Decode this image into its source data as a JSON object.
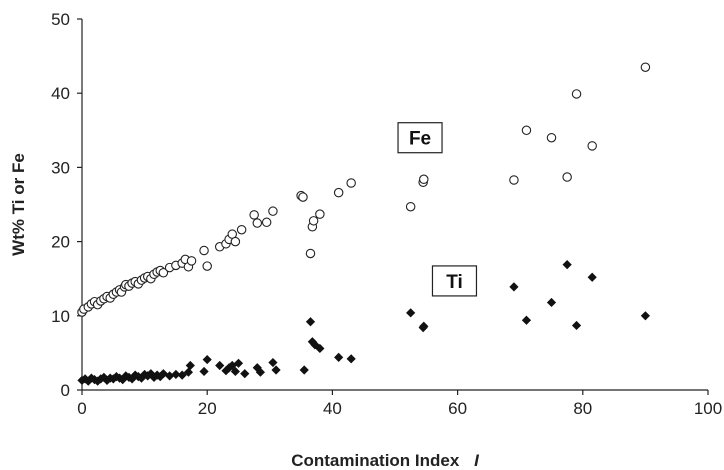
{
  "chart_data": {
    "type": "scatter",
    "title": "",
    "xlabel": "Contamination Index",
    "xlabel_symbol": "I",
    "ylabel": "Wt% Ti or Fe",
    "xlim": [
      0,
      100
    ],
    "ylim": [
      0,
      50
    ],
    "xticks": [
      "0",
      "20",
      "40",
      "60",
      "80",
      "100"
    ],
    "yticks": [
      "0",
      "10",
      "20",
      "30",
      "40",
      "50"
    ],
    "grid": false,
    "legend": "none",
    "series": [
      {
        "name": "Fe",
        "label_position": [
          54,
          34
        ],
        "marker": "open-circle",
        "color": "#222222",
        "points": [
          [
            0,
            10.5
          ],
          [
            0.3,
            10.9
          ],
          [
            1,
            11.2
          ],
          [
            1.5,
            11.6
          ],
          [
            2,
            11.9
          ],
          [
            2.5,
            11.5
          ],
          [
            3,
            12.0
          ],
          [
            3.5,
            12.3
          ],
          [
            4,
            12.6
          ],
          [
            4.5,
            12.4
          ],
          [
            5,
            12.9
          ],
          [
            5.5,
            13.2
          ],
          [
            6,
            13.5
          ],
          [
            6.3,
            13.2
          ],
          [
            6.8,
            13.9
          ],
          [
            7,
            14.2
          ],
          [
            7.5,
            14.0
          ],
          [
            8,
            14.4
          ],
          [
            8.5,
            14.6
          ],
          [
            9,
            14.3
          ],
          [
            9.5,
            14.8
          ],
          [
            10,
            15.1
          ],
          [
            10.5,
            15.3
          ],
          [
            11,
            15.0
          ],
          [
            11.5,
            15.6
          ],
          [
            12,
            15.9
          ],
          [
            12.5,
            16.1
          ],
          [
            13,
            15.8
          ],
          [
            14,
            16.5
          ],
          [
            15,
            16.8
          ],
          [
            16,
            17.1
          ],
          [
            16.5,
            17.6
          ],
          [
            17,
            16.6
          ],
          [
            17.5,
            17.4
          ],
          [
            19.5,
            18.8
          ],
          [
            20,
            16.7
          ],
          [
            22,
            19.3
          ],
          [
            23,
            19.7
          ],
          [
            23.5,
            20.3
          ],
          [
            24,
            21.0
          ],
          [
            24.5,
            20.0
          ],
          [
            25.5,
            21.6
          ],
          [
            27.5,
            23.6
          ],
          [
            28,
            22.5
          ],
          [
            29.5,
            22.6
          ],
          [
            30.5,
            24.1
          ],
          [
            35,
            26.2
          ],
          [
            35.3,
            26.0
          ],
          [
            36.5,
            18.4
          ],
          [
            36.8,
            22.0
          ],
          [
            37,
            22.8
          ],
          [
            38,
            23.7
          ],
          [
            41,
            26.6
          ],
          [
            43,
            27.9
          ],
          [
            52.5,
            24.7
          ],
          [
            54.5,
            28.0
          ],
          [
            54.6,
            28.4
          ],
          [
            69,
            28.3
          ],
          [
            71,
            35.0
          ],
          [
            75,
            34.0
          ],
          [
            77.5,
            28.7
          ],
          [
            79,
            39.9
          ],
          [
            81.5,
            32.9
          ],
          [
            90,
            43.5
          ]
        ]
      },
      {
        "name": "Ti",
        "label_position": [
          59.5,
          14.7
        ],
        "marker": "filled-diamond",
        "color": "#111111",
        "points": [
          [
            0,
            1.3
          ],
          [
            0.5,
            1.5
          ],
          [
            1,
            1.2
          ],
          [
            1.5,
            1.6
          ],
          [
            2,
            1.4
          ],
          [
            2.5,
            1.2
          ],
          [
            3,
            1.5
          ],
          [
            3.5,
            1.7
          ],
          [
            4,
            1.3
          ],
          [
            4.5,
            1.6
          ],
          [
            5,
            1.5
          ],
          [
            5.5,
            1.8
          ],
          [
            6,
            1.6
          ],
          [
            6.5,
            1.4
          ],
          [
            7,
            1.9
          ],
          [
            7.5,
            1.7
          ],
          [
            8,
            1.5
          ],
          [
            8.5,
            2.0
          ],
          [
            9,
            1.8
          ],
          [
            9.5,
            1.6
          ],
          [
            10,
            2.1
          ],
          [
            10.5,
            1.9
          ],
          [
            11,
            2.2
          ],
          [
            11.5,
            1.7
          ],
          [
            12,
            2.0
          ],
          [
            12.5,
            1.8
          ],
          [
            13,
            2.2
          ],
          [
            14,
            1.9
          ],
          [
            15,
            2.1
          ],
          [
            16,
            2.0
          ],
          [
            17,
            2.4
          ],
          [
            17.3,
            3.3
          ],
          [
            19.5,
            2.5
          ],
          [
            20,
            4.1
          ],
          [
            22,
            3.3
          ],
          [
            23,
            2.6
          ],
          [
            23.5,
            3.0
          ],
          [
            24,
            3.3
          ],
          [
            24.5,
            2.5
          ],
          [
            25,
            3.6
          ],
          [
            26,
            2.2
          ],
          [
            28,
            3.0
          ],
          [
            28.5,
            2.4
          ],
          [
            30.5,
            3.7
          ],
          [
            31,
            2.7
          ],
          [
            35.5,
            2.7
          ],
          [
            36.5,
            9.2
          ],
          [
            36.8,
            6.5
          ],
          [
            37.2,
            6.1
          ],
          [
            38,
            5.6
          ],
          [
            41,
            4.4
          ],
          [
            43,
            4.2
          ],
          [
            52.5,
            10.4
          ],
          [
            54.5,
            8.4
          ],
          [
            54.6,
            8.6
          ],
          [
            69,
            13.9
          ],
          [
            71,
            9.4
          ],
          [
            75,
            11.8
          ],
          [
            77.5,
            16.9
          ],
          [
            79,
            8.7
          ],
          [
            81.5,
            15.2
          ],
          [
            90,
            10.0
          ]
        ]
      }
    ]
  }
}
